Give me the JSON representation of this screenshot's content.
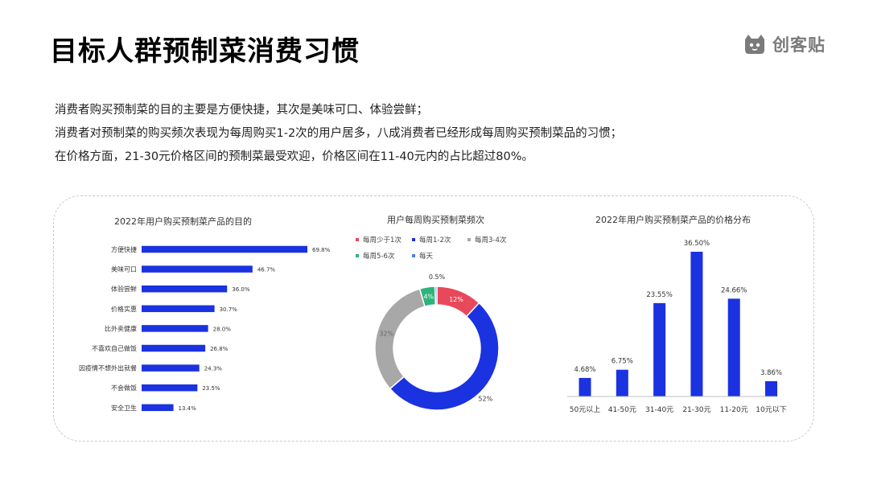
{
  "page": {
    "title": "目标人群预制菜消费习惯",
    "brand": "创客贴",
    "summary": [
      "消费者购买预制菜的目的主要是方便快捷，其次是美味可口、体验尝鲜；",
      "消费者对预制菜的购买频次表现为每周购买1-2次的用户居多，八成消费者已经形成每周购买预制菜品的习惯；",
      "在价格方面，21-30元价格区间的预制菜最受欢迎，价格区间在11-40元内的占比超过80%。"
    ]
  },
  "chart_data": [
    {
      "type": "bar",
      "orientation": "horizontal",
      "title": "2022年用户购买预制菜产品的目的",
      "categories": [
        "方便快捷",
        "美味可口",
        "体验尝鲜",
        "价格实惠",
        "比外卖健康",
        "不喜欢自己做饭",
        "因疫情不想外出就餐",
        "不会做饭",
        "安全卫生"
      ],
      "values": [
        69.8,
        46.7,
        36.0,
        30.7,
        28.0,
        26.8,
        24.3,
        23.5,
        13.4
      ],
      "labels": [
        "69.8%",
        "46.7%",
        "36.0%",
        "30.7%",
        "28.0%",
        "26.8%",
        "24.3%",
        "23.5%",
        "13.4%"
      ],
      "color": "#1a32e0"
    },
    {
      "type": "pie",
      "donut": true,
      "title": "用户每周购买预制菜频次",
      "legend_position": "top",
      "categories": [
        "每周少于1次",
        "每周1-2次",
        "每周3-4次",
        "每周5-6次",
        "每天"
      ],
      "values": [
        12,
        52,
        32,
        4,
        0.5
      ],
      "labels": [
        "12%",
        "52%",
        "32%",
        "4%",
        "0.5%"
      ],
      "colors": [
        "#e8495a",
        "#1a32e0",
        "#a8a8a8",
        "#2db37a",
        "#4a7fe0"
      ]
    },
    {
      "type": "bar",
      "title": "2022年用户购买预制菜产品的价格分布",
      "categories": [
        "50元以上",
        "41-50元",
        "31-40元",
        "21-30元",
        "11-20元",
        "10元以下"
      ],
      "values": [
        4.68,
        6.75,
        23.55,
        36.5,
        24.66,
        3.86
      ],
      "labels": [
        "4.68%",
        "6.75%",
        "23.55%",
        "36.50%",
        "24.66%",
        "3.86%"
      ],
      "color": "#1a32e0"
    }
  ]
}
